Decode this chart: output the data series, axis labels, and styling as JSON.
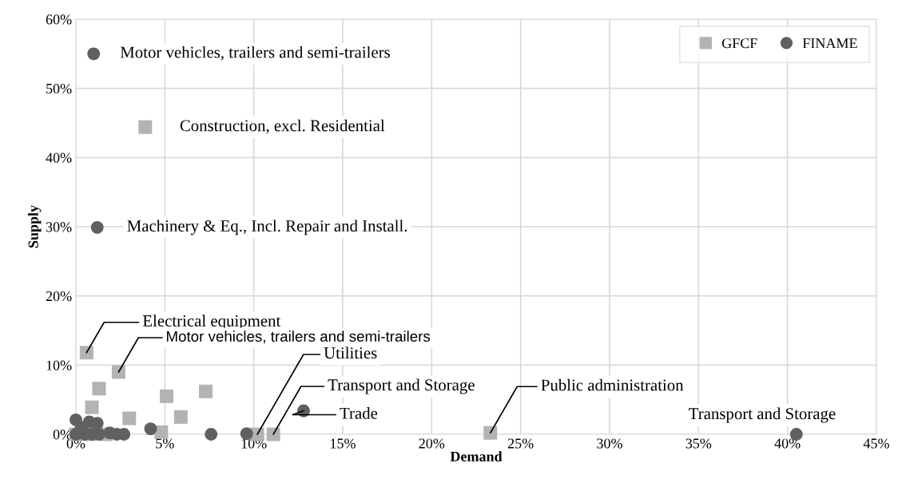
{
  "chart_data": {
    "type": "scatter",
    "xlabel": "Demand",
    "ylabel": "Supply",
    "xlim": [
      0,
      45
    ],
    "ylim": [
      0,
      60
    ],
    "xticks": [
      {
        "value": 0,
        "label": "0%"
      },
      {
        "value": 5,
        "label": "5%"
      },
      {
        "value": 10,
        "label": "10%"
      },
      {
        "value": 15,
        "label": "15%"
      },
      {
        "value": 20,
        "label": "20%"
      },
      {
        "value": 25,
        "label": "25%"
      },
      {
        "value": 30,
        "label": "30%"
      },
      {
        "value": 35,
        "label": "35%"
      },
      {
        "value": 40,
        "label": "40%"
      },
      {
        "value": 45,
        "label": "45%"
      }
    ],
    "yticks": [
      {
        "value": 0,
        "label": "0%"
      },
      {
        "value": 10,
        "label": "10%"
      },
      {
        "value": 20,
        "label": "20%"
      },
      {
        "value": 30,
        "label": "30%"
      },
      {
        "value": 40,
        "label": "40%"
      },
      {
        "value": 50,
        "label": "50%"
      },
      {
        "value": 60,
        "label": "60%"
      }
    ],
    "grid": true,
    "legend": "top right",
    "series": [
      {
        "name": "GFCF",
        "color": "#b3b3b3",
        "marker": "square",
        "x": [
          0.6,
          2.4,
          1.3,
          0.9,
          3.0,
          5.1,
          7.3,
          5.9,
          4.8,
          10.2,
          11.1,
          0.45,
          0.0,
          0.8,
          1.7,
          23.3,
          3.9
        ],
        "values": [
          11.8,
          9.0,
          6.6,
          3.9,
          2.3,
          5.5,
          6.2,
          2.5,
          0.3,
          0.0,
          0.0,
          null,
          0.0,
          0.0,
          0.0,
          0.2,
          44.4
        ]
      },
      {
        "name": "FINAME",
        "color": "#606060",
        "marker": "circle",
        "x": [
          1.0,
          1.2,
          12.8,
          40.5,
          4.2,
          7.6,
          9.6,
          2.7,
          2.3,
          1.9,
          0.0,
          0.75,
          1.2,
          0.3,
          0.0,
          0.5,
          0.9,
          1.3
        ],
        "values": [
          55.0,
          29.9,
          3.4,
          0.0,
          0.8,
          0.0,
          0.1,
          0.0,
          0.0,
          0.2,
          2.1,
          1.8,
          1.6,
          1.0,
          0.0,
          0.0,
          0.0,
          0.0
        ]
      }
    ],
    "annotations": [
      {
        "text": "Motor vehicles, trailers and semi-trailers",
        "x": 1.0,
        "y": 55.0
      },
      {
        "text": "Construction, excl. Residential",
        "x": 3.9,
        "y": 44.4
      },
      {
        "text": "Machinery & Eq., Incl. Repair and Install.",
        "x": 1.2,
        "y": 29.9
      },
      {
        "text": "Electrical equipment",
        "x": 0.6,
        "y": 11.8
      },
      {
        "text": "Motor vehicles, trailers and semi-trailers",
        "x": 2.4,
        "y": 9.0
      },
      {
        "text": "Utilities",
        "x": 10.2,
        "y": 0.0
      },
      {
        "text": "Transport and Storage",
        "x": 11.1,
        "y": 0.0
      },
      {
        "text": "Trade",
        "x": 12.8,
        "y": 3.4
      },
      {
        "text": "Public administration",
        "x": 23.3,
        "y": 0.2
      },
      {
        "text": "Transport and Storage",
        "x": 40.5,
        "y": 0.0
      }
    ]
  }
}
